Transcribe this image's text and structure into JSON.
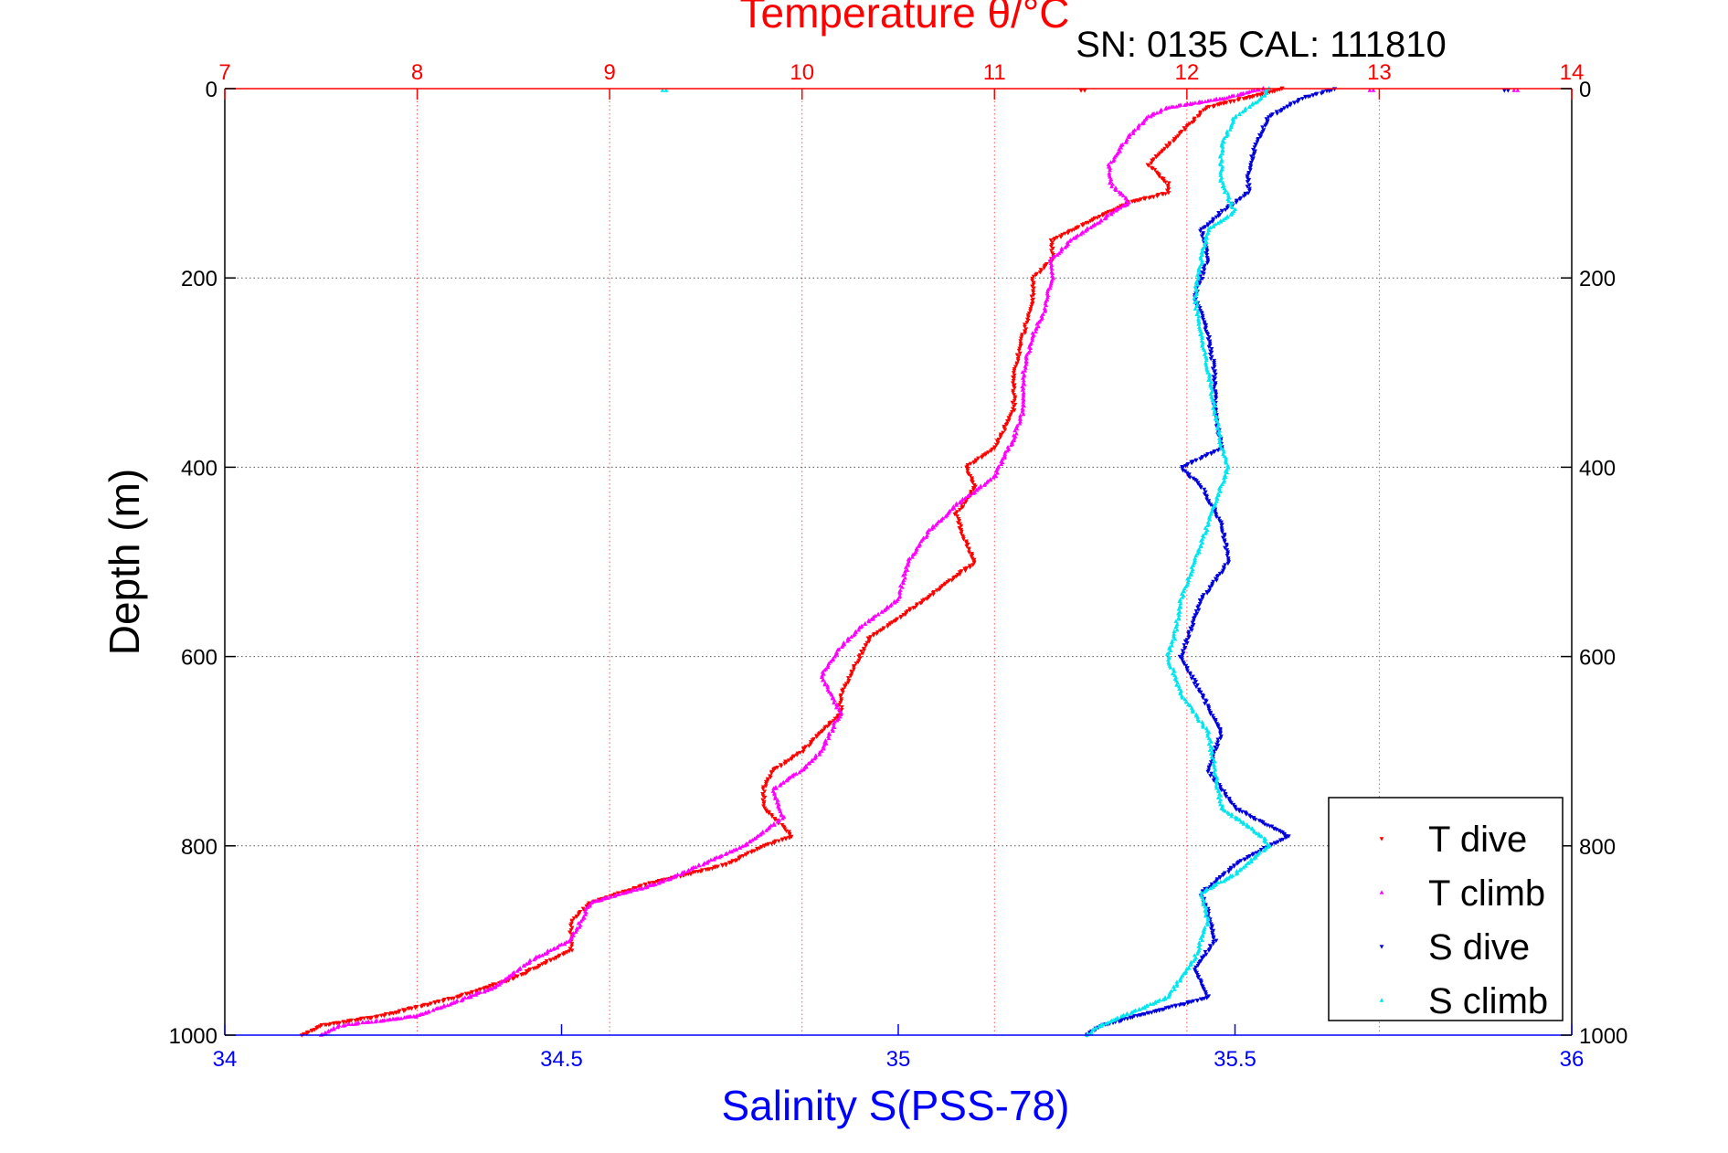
{
  "chart_data": {
    "type": "scatter",
    "title": "Temperature θ/°C",
    "subtitle": "SN: 0135  CAL: 111810",
    "xlabel_bottom": "Salinity S(PSS-78)",
    "xlabel_top": "Temperature θ/°C",
    "ylabel": "Depth (m)",
    "x_bottom_range": [
      34,
      36
    ],
    "x_top_range": [
      7,
      14
    ],
    "y_range": [
      0,
      1000
    ],
    "y_reversed": true,
    "x_bottom_ticks": [
      "34",
      "34.5",
      "35",
      "35.5",
      "36"
    ],
    "x_top_ticks": [
      "7",
      "8",
      "9",
      "10",
      "11",
      "12",
      "13",
      "14"
    ],
    "y_ticks": [
      "0",
      "200",
      "400",
      "600",
      "800",
      "1000"
    ],
    "grid": true,
    "legend_position": "bottom-right",
    "colors": {
      "temperature_axis": "#ff0000",
      "salinity_axis": "#0000ff",
      "t_dive": "#ff0000",
      "t_climb": "#ff00ff",
      "s_dive": "#0000dd",
      "s_climb": "#00e5ee"
    },
    "series": [
      {
        "name": "T dive",
        "axis": "temperature",
        "color": "#ff0000",
        "depth": [
          0,
          10,
          20,
          40,
          60,
          80,
          100,
          110,
          120,
          140,
          160,
          180,
          200,
          220,
          260,
          300,
          340,
          380,
          400,
          420,
          450,
          480,
          500,
          530,
          560,
          580,
          600,
          640,
          660,
          700,
          720,
          740,
          760,
          790,
          800,
          820,
          840,
          860,
          880,
          910,
          940,
          960,
          980,
          990,
          1000
        ],
        "values": [
          12.5,
          12.3,
          12.1,
          12.0,
          11.9,
          11.8,
          11.9,
          11.9,
          11.7,
          11.5,
          11.3,
          11.3,
          11.2,
          11.2,
          11.15,
          11.1,
          11.1,
          11.0,
          10.85,
          10.9,
          10.8,
          10.85,
          10.9,
          10.7,
          10.5,
          10.35,
          10.3,
          10.2,
          10.2,
          10.0,
          9.85,
          9.8,
          9.8,
          9.95,
          9.8,
          9.6,
          9.2,
          8.9,
          8.8,
          8.8,
          8.5,
          8.2,
          7.8,
          7.5,
          7.4
        ]
      },
      {
        "name": "T climb",
        "axis": "temperature",
        "color": "#ff00ff",
        "depth": [
          0,
          10,
          20,
          30,
          50,
          80,
          100,
          120,
          160,
          180,
          200,
          240,
          260,
          300,
          340,
          370,
          390,
          410,
          440,
          470,
          500,
          540,
          570,
          590,
          620,
          660,
          700,
          720,
          740,
          770,
          800,
          840,
          860,
          880,
          900,
          920,
          950,
          980,
          990,
          1000
        ],
        "values": [
          12.4,
          12.2,
          11.9,
          11.8,
          11.7,
          11.6,
          11.6,
          11.7,
          11.4,
          11.3,
          11.3,
          11.25,
          11.2,
          11.15,
          11.15,
          11.1,
          11.05,
          11.0,
          10.8,
          10.65,
          10.55,
          10.5,
          10.3,
          10.2,
          10.1,
          10.2,
          10.1,
          10.0,
          9.85,
          9.9,
          9.7,
          9.25,
          8.9,
          8.85,
          8.8,
          8.6,
          8.4,
          8.0,
          7.6,
          7.5
        ]
      },
      {
        "name": "S dive",
        "axis": "salinity",
        "color": "#0000dd",
        "depth": [
          0,
          10,
          30,
          60,
          90,
          110,
          130,
          150,
          180,
          220,
          260,
          300,
          340,
          380,
          400,
          420,
          460,
          500,
          540,
          580,
          600,
          640,
          680,
          720,
          760,
          790,
          800,
          820,
          850,
          870,
          900,
          930,
          960,
          990,
          1000
        ],
        "values": [
          35.65,
          35.6,
          35.55,
          35.53,
          35.52,
          35.52,
          35.48,
          35.45,
          35.46,
          35.44,
          35.46,
          35.47,
          35.47,
          35.48,
          35.42,
          35.45,
          35.48,
          35.49,
          35.45,
          35.43,
          35.42,
          35.45,
          35.48,
          35.46,
          35.5,
          35.58,
          35.55,
          35.5,
          35.45,
          35.46,
          35.47,
          35.44,
          35.46,
          35.3,
          35.28
        ]
      },
      {
        "name": "S climb",
        "axis": "salinity",
        "color": "#00e5ee",
        "depth": [
          0,
          10,
          30,
          60,
          100,
          130,
          150,
          180,
          220,
          260,
          300,
          340,
          380,
          400,
          420,
          460,
          500,
          540,
          580,
          600,
          640,
          680,
          720,
          760,
          790,
          800,
          830,
          850,
          880,
          920,
          960,
          990,
          1000
        ],
        "values": [
          35.55,
          35.54,
          35.5,
          35.48,
          35.48,
          35.5,
          35.46,
          35.45,
          35.44,
          35.45,
          35.46,
          35.47,
          35.48,
          35.49,
          35.48,
          35.46,
          35.44,
          35.42,
          35.41,
          35.4,
          35.42,
          35.46,
          35.47,
          35.48,
          35.54,
          35.55,
          35.5,
          35.45,
          35.46,
          35.44,
          35.4,
          35.3,
          35.28
        ]
      }
    ],
    "stray_points": [
      {
        "series": "S climb",
        "depth": 0,
        "value": 34.65
      },
      {
        "series": "S dive",
        "depth": 0,
        "value": 35.9
      },
      {
        "series": "T climb",
        "depth": 0,
        "value": 12.95
      },
      {
        "series": "T climb",
        "depth": 0,
        "value": 13.7
      },
      {
        "series": "T dive",
        "depth": 0,
        "value": 11.45
      }
    ]
  }
}
